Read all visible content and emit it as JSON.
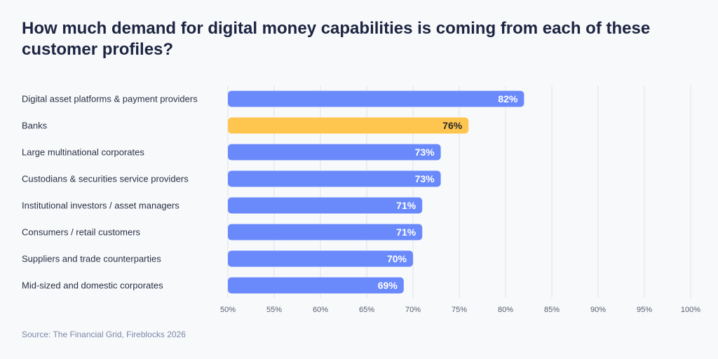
{
  "title": "How much demand for digital money capabilities is coming from each of these customer profiles?",
  "source": "Source: The Financial Grid, Fireblocks 2026",
  "chart_data": {
    "type": "bar",
    "orientation": "horizontal",
    "title": "How much demand for digital money capabilities is coming from each of these customer profiles?",
    "categories": [
      "Digital asset platforms & payment providers",
      "Banks",
      "Large multinational corporates",
      "Custodians & securities service providers",
      "Institutional investors / asset managers",
      "Consumers / retail customers",
      "Suppliers and trade counterparties",
      "Mid-sized and domestic corporates"
    ],
    "values": [
      82,
      76,
      73,
      73,
      71,
      71,
      70,
      69
    ],
    "data_labels": [
      "82%",
      "76%",
      "73%",
      "73%",
      "71%",
      "71%",
      "70%",
      "69%"
    ],
    "xlim": [
      50,
      100
    ],
    "xticks": [
      "50%",
      "55%",
      "60%",
      "65%",
      "70%",
      "75%",
      "80%",
      "85%",
      "90%",
      "95%",
      "100%"
    ],
    "grid": "vertical",
    "colors": {
      "default": "#6a8afc",
      "highlight": "#ffc64f",
      "highlight_category": "Banks",
      "label_default": "#ffffff",
      "label_highlight": "#2a2a2a",
      "grid": "#e2e4e9"
    }
  }
}
